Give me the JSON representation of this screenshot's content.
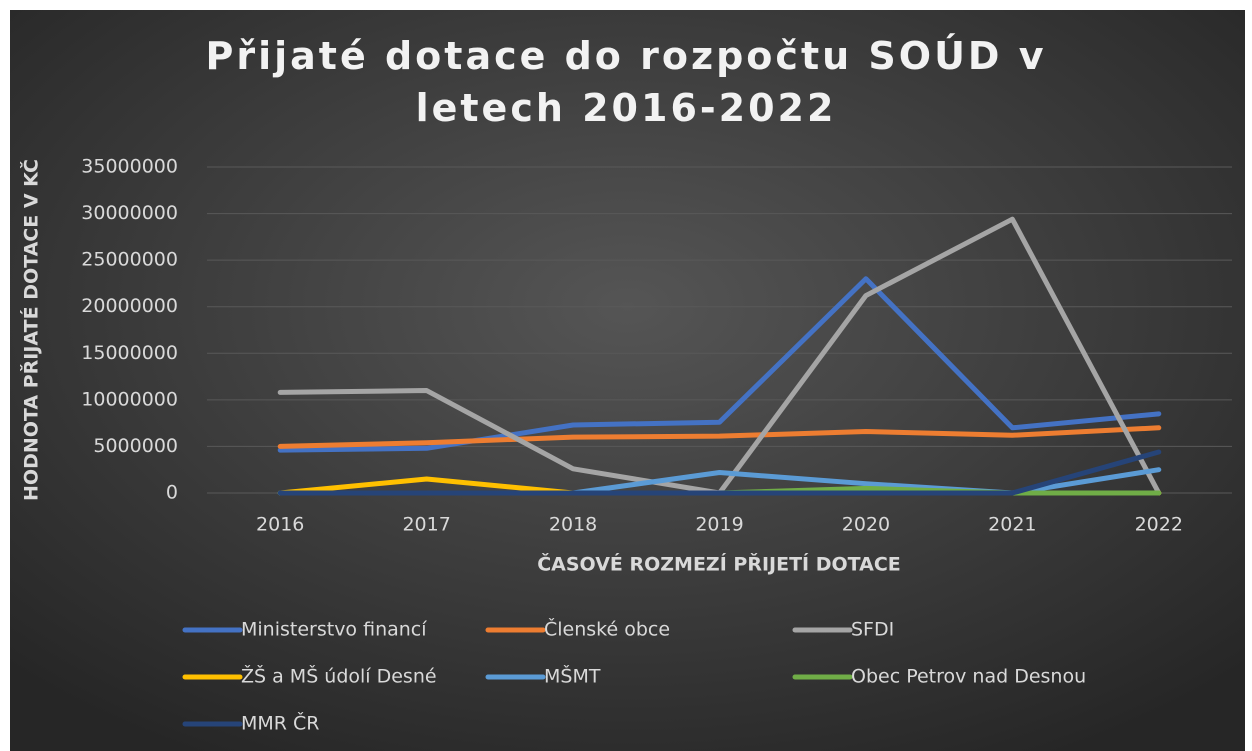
{
  "chart_data": {
    "type": "line",
    "title": "Přijaté dotace do rozpočtu SOÚD v letech 2016-2022",
    "x_label": "ČASOVÉ ROZMEZÍ PŘIJETÍ DOTACE",
    "y_label": "HODNOTA PŘIJATÉ DOTACE V KČ",
    "categories": [
      "2016",
      "2017",
      "2018",
      "2019",
      "2020",
      "2021",
      "2022"
    ],
    "ylim": [
      0,
      35000000
    ],
    "yticks": [
      0,
      5000000,
      10000000,
      15000000,
      20000000,
      25000000,
      30000000,
      35000000
    ],
    "grid": true,
    "legend": "bottom",
    "series": [
      {
        "name": "Ministerstvo financí",
        "color": "#4472c4",
        "values": [
          4600000,
          4800000,
          7300000,
          7600000,
          23000000,
          7000000,
          8500000
        ]
      },
      {
        "name": "Členské obce",
        "color": "#ed7d31",
        "values": [
          5000000,
          5400000,
          6000000,
          6100000,
          6600000,
          6200000,
          7000000
        ]
      },
      {
        "name": "SFDI",
        "color": "#a5a5a5",
        "values": [
          10800000,
          11000000,
          2600000,
          0,
          21200000,
          29400000,
          0
        ]
      },
      {
        "name": "ŽŠ a MŠ údolí Desné",
        "color": "#ffc000",
        "values": [
          0,
          1500000,
          0,
          0,
          0,
          0,
          0
        ]
      },
      {
        "name": "MŠMT",
        "color": "#5b9bd5",
        "values": [
          0,
          0,
          0,
          2200000,
          1000000,
          0,
          2500000
        ]
      },
      {
        "name": "Obec Petrov nad Desnou",
        "color": "#70ad47",
        "values": [
          0,
          0,
          0,
          0,
          500000,
          0,
          0
        ]
      },
      {
        "name": "MMR ČR",
        "color": "#264478",
        "values": [
          0,
          0,
          0,
          0,
          0,
          0,
          4400000
        ]
      }
    ]
  }
}
